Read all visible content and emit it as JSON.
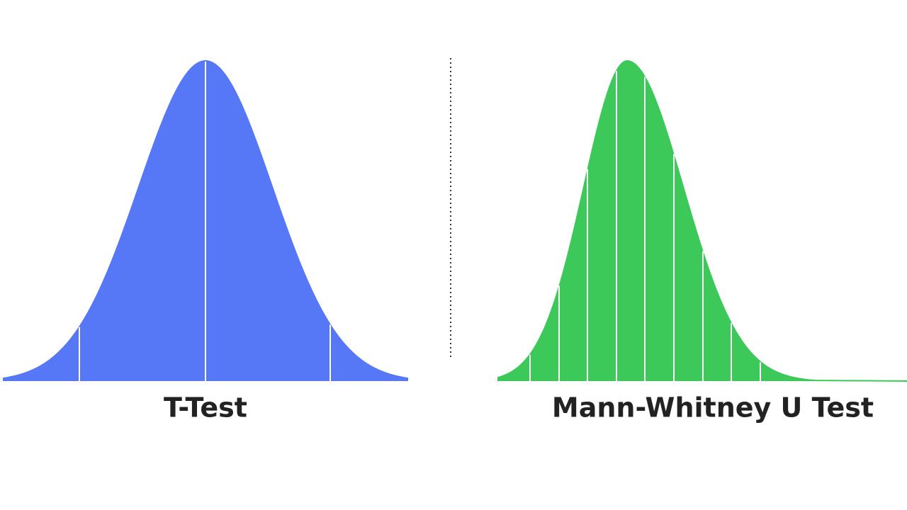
{
  "left_panel": {
    "label": "T-Test"
  },
  "right_panel": {
    "label": "Mann-Whitney U Test"
  }
}
